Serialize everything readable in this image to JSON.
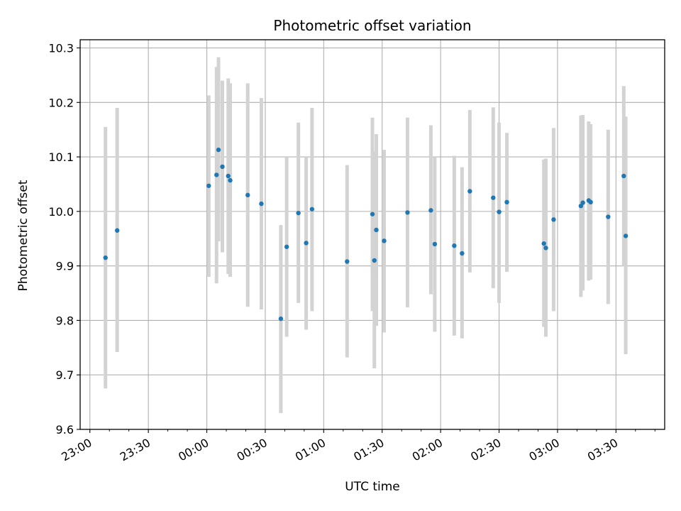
{
  "chart_data": {
    "type": "scatter",
    "title": "Photometric offset variation",
    "xlabel": "UTC time",
    "ylabel": "Photometric offset",
    "ylim": [
      9.6,
      10.315
    ],
    "xlim": [
      "22:55",
      "03:55"
    ],
    "x_ticks": [
      "23:00",
      "23:30",
      "00:00",
      "00:30",
      "01:00",
      "01:30",
      "02:00",
      "02:30",
      "03:00",
      "03:30"
    ],
    "y_ticks": [
      "9.6",
      "9.7",
      "9.8",
      "9.9",
      "10.0",
      "10.1",
      "10.2",
      "10.3"
    ],
    "grid": true,
    "errorbar_color": "#d3d3d3",
    "point_color": "#1f77b4",
    "points": [
      {
        "x": "23:08",
        "y": 9.915,
        "ylow": 9.675,
        "yhigh": 10.155
      },
      {
        "x": "23:14",
        "y": 9.965,
        "ylow": 9.742,
        "yhigh": 10.19
      },
      {
        "x": "00:01",
        "y": 10.047,
        "ylow": 9.88,
        "yhigh": 10.213
      },
      {
        "x": "00:05",
        "y": 10.067,
        "ylow": 9.868,
        "yhigh": 10.265
      },
      {
        "x": "00:06",
        "y": 10.113,
        "ylow": 9.945,
        "yhigh": 10.283
      },
      {
        "x": "00:08",
        "y": 10.082,
        "ylow": 9.925,
        "yhigh": 10.24
      },
      {
        "x": "00:11",
        "y": 10.065,
        "ylow": 9.885,
        "yhigh": 10.244
      },
      {
        "x": "00:12",
        "y": 10.057,
        "ylow": 9.88,
        "yhigh": 10.235
      },
      {
        "x": "00:21",
        "y": 10.03,
        "ylow": 9.825,
        "yhigh": 10.235
      },
      {
        "x": "00:28",
        "y": 10.014,
        "ylow": 9.82,
        "yhigh": 10.208
      },
      {
        "x": "00:38",
        "y": 9.803,
        "ylow": 9.63,
        "yhigh": 9.975
      },
      {
        "x": "00:41",
        "y": 9.935,
        "ylow": 9.77,
        "yhigh": 10.1
      },
      {
        "x": "00:47",
        "y": 9.997,
        "ylow": 9.832,
        "yhigh": 10.163
      },
      {
        "x": "00:51",
        "y": 9.942,
        "ylow": 9.783,
        "yhigh": 10.1
      },
      {
        "x": "00:54",
        "y": 10.004,
        "ylow": 9.817,
        "yhigh": 10.19
      },
      {
        "x": "01:12",
        "y": 9.908,
        "ylow": 9.732,
        "yhigh": 10.085
      },
      {
        "x": "01:25",
        "y": 9.995,
        "ylow": 9.817,
        "yhigh": 10.172
      },
      {
        "x": "01:26",
        "y": 9.91,
        "ylow": 9.712,
        "yhigh": 10.11
      },
      {
        "x": "01:27",
        "y": 9.966,
        "ylow": 9.79,
        "yhigh": 10.142
      },
      {
        "x": "01:31",
        "y": 9.946,
        "ylow": 9.778,
        "yhigh": 10.113
      },
      {
        "x": "01:43",
        "y": 9.998,
        "ylow": 9.824,
        "yhigh": 10.172
      },
      {
        "x": "01:55",
        "y": 10.002,
        "ylow": 9.848,
        "yhigh": 10.158
      },
      {
        "x": "01:57",
        "y": 9.94,
        "ylow": 9.779,
        "yhigh": 10.1
      },
      {
        "x": "02:07",
        "y": 9.937,
        "ylow": 9.772,
        "yhigh": 10.102
      },
      {
        "x": "02:11",
        "y": 9.923,
        "ylow": 9.767,
        "yhigh": 10.081
      },
      {
        "x": "02:15",
        "y": 10.037,
        "ylow": 9.888,
        "yhigh": 10.186
      },
      {
        "x": "02:27",
        "y": 10.025,
        "ylow": 9.859,
        "yhigh": 10.191
      },
      {
        "x": "02:30",
        "y": 9.999,
        "ylow": 9.832,
        "yhigh": 10.163
      },
      {
        "x": "02:34",
        "y": 10.017,
        "ylow": 9.889,
        "yhigh": 10.144
      },
      {
        "x": "02:53",
        "y": 9.941,
        "ylow": 9.788,
        "yhigh": 10.095
      },
      {
        "x": "02:54",
        "y": 9.933,
        "ylow": 9.77,
        "yhigh": 10.097
      },
      {
        "x": "02:58",
        "y": 9.985,
        "ylow": 9.817,
        "yhigh": 10.153
      },
      {
        "x": "03:12",
        "y": 10.01,
        "ylow": 9.843,
        "yhigh": 10.176
      },
      {
        "x": "03:13",
        "y": 10.016,
        "ylow": 9.855,
        "yhigh": 10.177
      },
      {
        "x": "03:16",
        "y": 10.02,
        "ylow": 9.873,
        "yhigh": 10.165
      },
      {
        "x": "03:17",
        "y": 10.017,
        "ylow": 9.875,
        "yhigh": 10.16
      },
      {
        "x": "03:26",
        "y": 9.99,
        "ylow": 9.83,
        "yhigh": 10.15
      },
      {
        "x": "03:34",
        "y": 10.065,
        "ylow": 9.9,
        "yhigh": 10.23
      },
      {
        "x": "03:35",
        "y": 9.955,
        "ylow": 9.738,
        "yhigh": 10.174
      }
    ]
  }
}
